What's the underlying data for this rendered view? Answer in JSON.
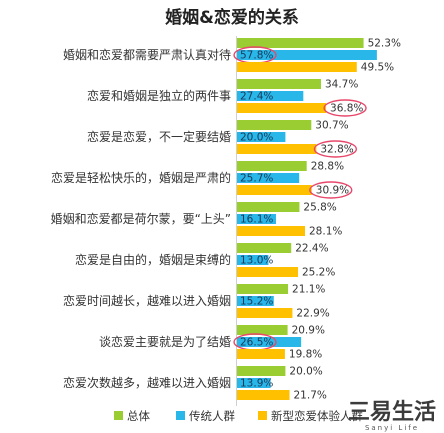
{
  "chart_data": {
    "type": "bar",
    "orientation": "horizontal",
    "title": "婚姻&恋爱的关系",
    "categories": [
      "婚姻和恋爱都需要严肃认真对待",
      "恋爱和婚姻是独立的两件事",
      "恋爱是恋爱，不一定要结婚",
      "恋爱是轻松快乐的，婚姻是严肃的",
      "婚姻和恋爱都是荷尔蒙，要“上头”",
      "恋爱是自由的，婚姻是束缚的",
      "恋爱时间越长，越难以进入婚姻",
      "谈恋爱主要就是为了结婚",
      "恋爱次数越多，越难以进入婚姻"
    ],
    "series": [
      {
        "name": "总体",
        "color": "#9acd32",
        "values": [
          52.3,
          34.7,
          30.7,
          28.8,
          25.8,
          22.4,
          21.1,
          20.9,
          20.0
        ]
      },
      {
        "name": "传统人群",
        "color": "#29b6e8",
        "values": [
          57.8,
          27.4,
          20.0,
          25.7,
          16.1,
          13.0,
          15.2,
          26.5,
          13.9
        ]
      },
      {
        "name": "新型恋爱体验人群",
        "color": "#ffc000",
        "values": [
          49.5,
          36.8,
          32.8,
          30.9,
          28.1,
          25.2,
          22.9,
          19.8,
          21.7
        ]
      }
    ],
    "value_suffix": "%",
    "highlighted": [
      {
        "category": 0,
        "series": 1
      },
      {
        "category": 1,
        "series": 2
      },
      {
        "category": 2,
        "series": 2
      },
      {
        "category": 3,
        "series": 2
      },
      {
        "category": 7,
        "series": 1
      }
    ],
    "highlight_color": "#e8476a",
    "legend_position": "bottom",
    "grid": false,
    "xlim": [
      0,
      70
    ]
  },
  "watermark": {
    "text": "三易生活",
    "sub": "Sanyi Life"
  }
}
